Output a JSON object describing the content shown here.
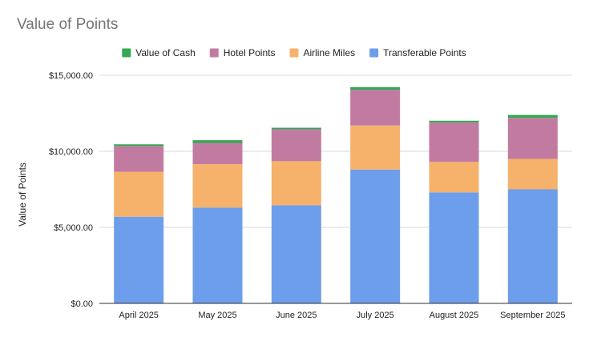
{
  "chart_data": {
    "type": "bar",
    "stacked": true,
    "title": "Value of Points",
    "xlabel": "",
    "ylabel": "Value of Points",
    "ylim": [
      0,
      15000
    ],
    "yticks": [
      0,
      5000,
      10000,
      15000
    ],
    "ytick_labels": [
      "$0.00",
      "$5,000.00",
      "$10,000.00",
      "$15,000.00"
    ],
    "grid": true,
    "legend_position": "top",
    "categories": [
      "April 2025",
      "May 2025",
      "June 2025",
      "July 2025",
      "August 2025",
      "September 2025"
    ],
    "series": [
      {
        "name": "Transferable Points",
        "color": "#6d9eeb",
        "values": [
          5700,
          6300,
          6450,
          8800,
          7300,
          7500
        ]
      },
      {
        "name": "Airline Miles",
        "color": "#f6b26b",
        "values": [
          2950,
          2850,
          2900,
          2900,
          2000,
          2000
        ]
      },
      {
        "name": "Hotel Points",
        "color": "#c27ba0",
        "values": [
          1700,
          1400,
          2100,
          2350,
          2600,
          2700
        ]
      },
      {
        "name": "Value of Cash",
        "color": "#34a853",
        "values": [
          110,
          180,
          100,
          170,
          110,
          190
        ]
      }
    ],
    "legend_order": [
      "Value of Cash",
      "Hotel Points",
      "Airline Miles",
      "Transferable Points"
    ]
  }
}
